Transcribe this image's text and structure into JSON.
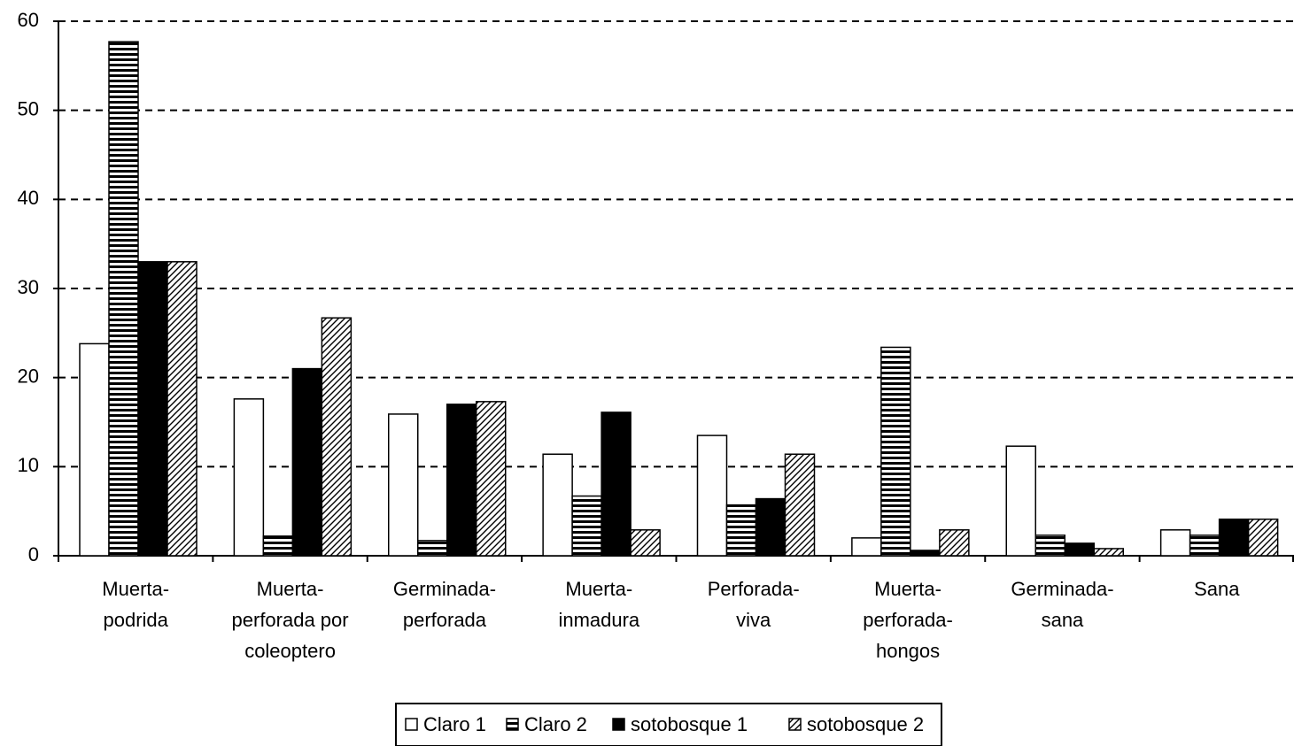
{
  "chart_data": {
    "type": "bar",
    "categories": [
      "Muerta-\npodrida",
      "Muerta-\nperforada por\ncoleoptero",
      "Germinada-\nperforada",
      "Muerta-\ninmadura",
      "Perforada-\nviva",
      "Muerta-\nperforada-\nhongos",
      "Germinada-\nsana",
      "Sana"
    ],
    "series": [
      {
        "name": "Claro 1",
        "color": "#ffffff",
        "pattern": "none",
        "values": [
          23.8,
          17.6,
          15.9,
          11.4,
          13.5,
          2.0,
          12.3,
          2.9
        ]
      },
      {
        "name": "Claro 2",
        "color": "#000000",
        "pattern": "horizontal",
        "values": [
          57.7,
          2.2,
          1.7,
          6.7,
          5.7,
          23.4,
          2.3,
          2.3
        ]
      },
      {
        "name": "sotobosque 1",
        "color": "#000000",
        "pattern": "solid",
        "values": [
          33,
          21,
          17,
          16.1,
          6.4,
          0.6,
          1.4,
          4.1
        ]
      },
      {
        "name": "sotobosque 2",
        "color": "#000000",
        "pattern": "diagonal",
        "values": [
          33,
          26.7,
          17.3,
          2.9,
          11.4,
          2.9,
          0.8,
          4.1
        ]
      }
    ],
    "ylim": [
      0,
      60
    ],
    "yticks": [
      0,
      10,
      20,
      30,
      40,
      50,
      60
    ],
    "grid": true,
    "legend": "bottom"
  }
}
